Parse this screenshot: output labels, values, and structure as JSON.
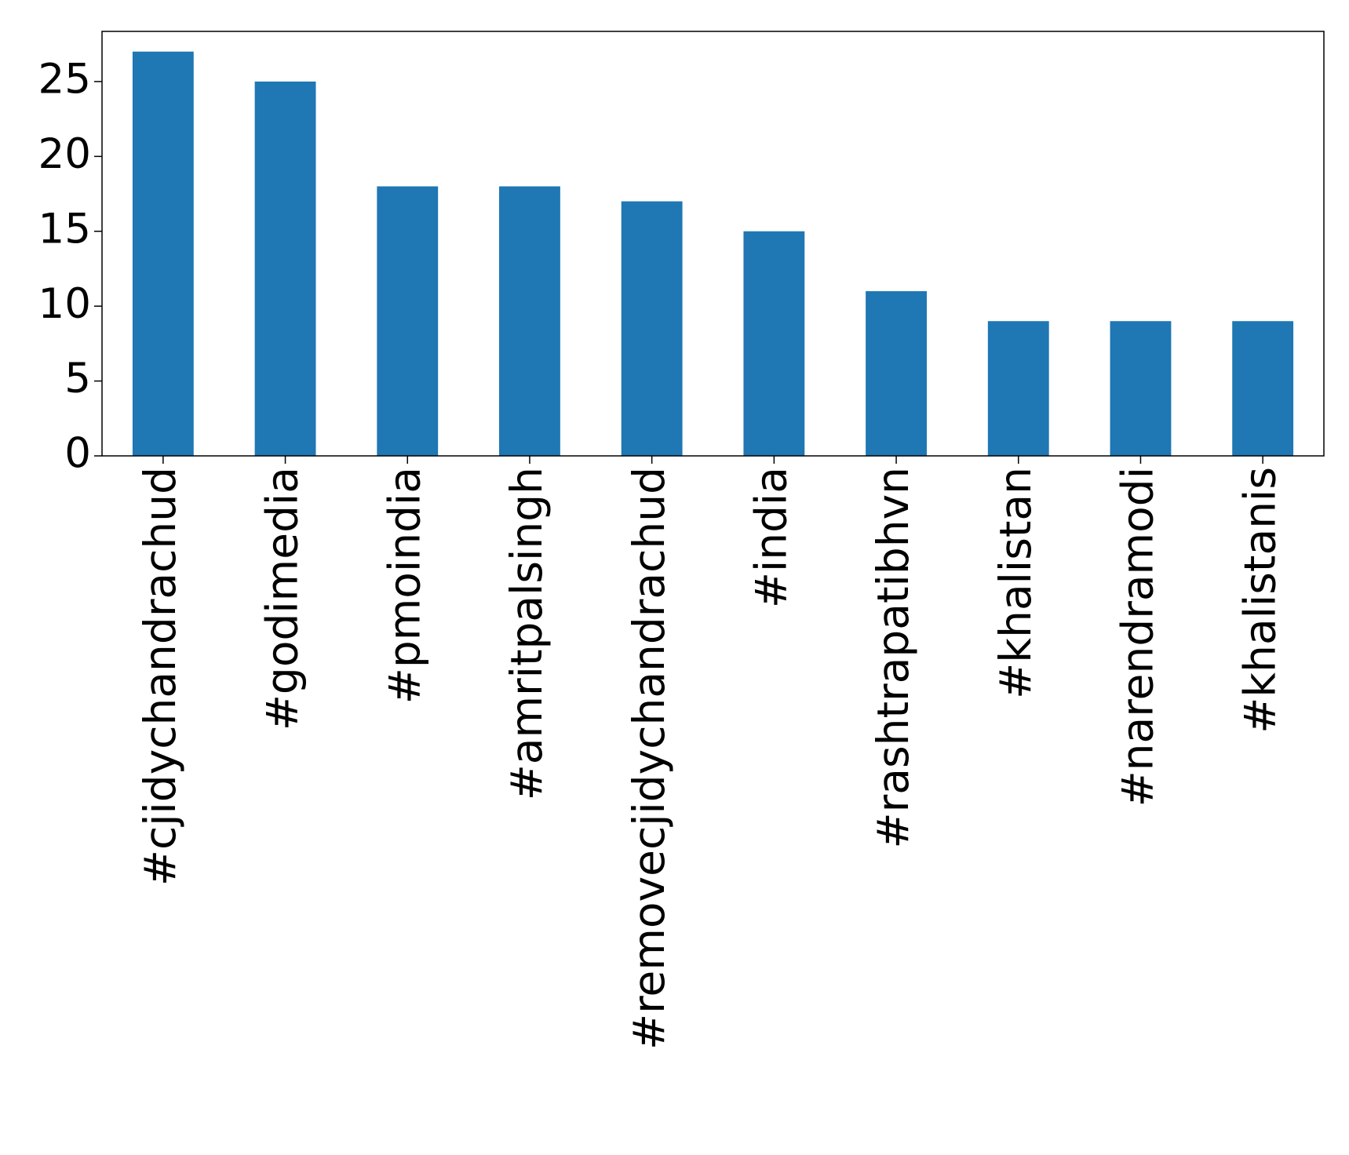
{
  "chart_data": {
    "type": "bar",
    "categories": [
      "#cjidychandrachud",
      "#godimedia",
      "#pmoindia",
      "#amritpalsingh",
      "#removecjidychandrachud",
      "#india",
      "#rashtrapatibhvn",
      "#khalistan",
      "#narendramodi",
      "#khalistanis"
    ],
    "values": [
      27,
      25,
      18,
      18,
      17,
      15,
      11,
      9,
      9,
      9
    ],
    "color": "#1f77b4",
    "ylim": [
      0,
      28.35
    ],
    "yticks": [
      0,
      5,
      10,
      15,
      20,
      25
    ],
    "grid": false
  }
}
